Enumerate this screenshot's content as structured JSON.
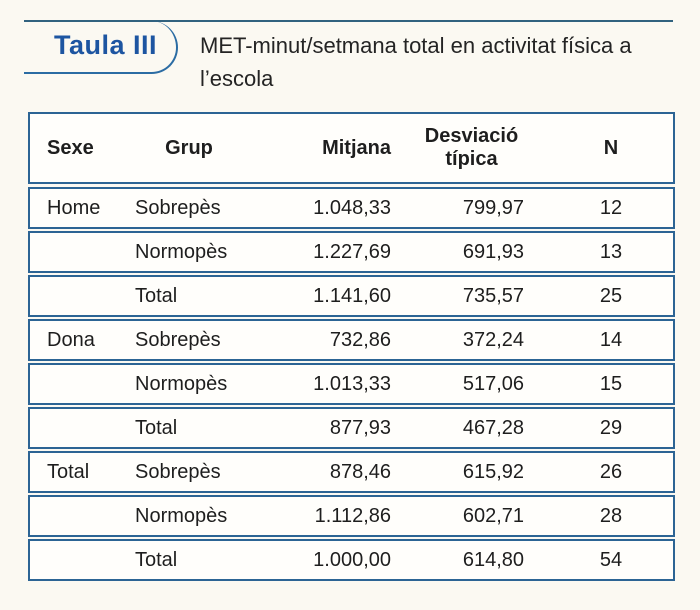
{
  "header": {
    "tab_label": "Taula III",
    "title_lines": [
      "MET-minut/setmana total en activitat física a",
      "l’escola"
    ]
  },
  "table": {
    "columns": [
      "Sexe",
      "Grup",
      "Mitjana",
      "Desviació típica",
      "N"
    ],
    "rows": [
      {
        "sexe": "Home",
        "grup": "Sobrepès",
        "mitjana": "1.048,33",
        "desviacio": "799,97",
        "n": "12"
      },
      {
        "sexe": "",
        "grup": "Normopès",
        "mitjana": "1.227,69",
        "desviacio": "691,93",
        "n": "13"
      },
      {
        "sexe": "",
        "grup": "Total",
        "mitjana": "1.141,60",
        "desviacio": "735,57",
        "n": "25"
      },
      {
        "sexe": "Dona",
        "grup": "Sobrepès",
        "mitjana": "732,86",
        "desviacio": "372,24",
        "n": "14"
      },
      {
        "sexe": "",
        "grup": "Normopès",
        "mitjana": "1.013,33",
        "desviacio": "517,06",
        "n": "15"
      },
      {
        "sexe": "",
        "grup": "Total",
        "mitjana": "877,93",
        "desviacio": "467,28",
        "n": "29"
      },
      {
        "sexe": "Total",
        "grup": "Sobrepès",
        "mitjana": "878,46",
        "desviacio": "615,92",
        "n": "26"
      },
      {
        "sexe": "",
        "grup": "Normopès",
        "mitjana": "1.112,86",
        "desviacio": "602,71",
        "n": "28"
      },
      {
        "sexe": "",
        "grup": "Total",
        "mitjana": "1.000,00",
        "desviacio": "614,80",
        "n": "54"
      }
    ]
  },
  "colors": {
    "tab_label_blue": "#1d55a1",
    "table_border_blue": "#2c6494",
    "top_rule_blue": "#31627f",
    "page_background": "#fbf9f2",
    "row_background": "#fffefb",
    "text": "#1e1e1e"
  },
  "chart_data": {
    "type": "table",
    "title": "MET-minut/setmana total en activitat física a l’escola",
    "columns": [
      "Sexe",
      "Grup",
      "Mitjana",
      "Desviació típica",
      "N"
    ],
    "rows": [
      [
        "Home",
        "Sobrepès",
        "1.048,33",
        "799,97",
        "12"
      ],
      [
        "",
        "Normopès",
        "1.227,69",
        "691,93",
        "13"
      ],
      [
        "",
        "Total",
        "1.141,60",
        "735,57",
        "25"
      ],
      [
        "Dona",
        "Sobrepès",
        "732,86",
        "372,24",
        "14"
      ],
      [
        "",
        "Normopès",
        "1.013,33",
        "517,06",
        "15"
      ],
      [
        "",
        "Total",
        "877,93",
        "467,28",
        "29"
      ],
      [
        "Total",
        "Sobrepès",
        "878,46",
        "615,92",
        "26"
      ],
      [
        "",
        "Normopès",
        "1.112,86",
        "602,71",
        "28"
      ],
      [
        "",
        "Total",
        "1.000,00",
        "614,80",
        "54"
      ]
    ]
  }
}
